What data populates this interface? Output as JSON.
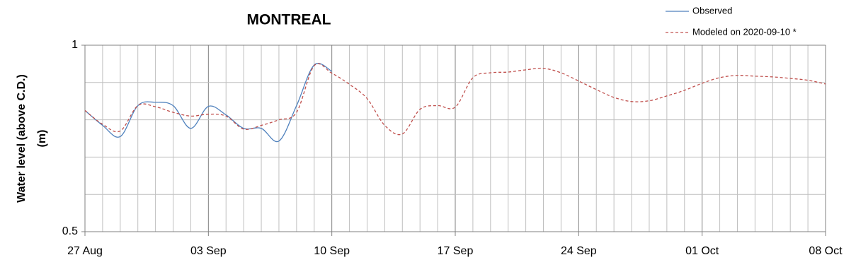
{
  "chart_data": {
    "type": "line",
    "title": "MONTREAL",
    "y_label": [
      "Water level (above C.D.)",
      "(m)"
    ],
    "categories": [
      "27 Aug",
      null,
      null,
      null,
      null,
      null,
      null,
      "03 Sep",
      null,
      null,
      null,
      null,
      null,
      null,
      "10 Sep",
      null,
      null,
      null,
      null,
      null,
      null,
      "17 Sep",
      null,
      null,
      null,
      null,
      null,
      null,
      "24 Sep",
      null,
      null,
      null,
      null,
      null,
      null,
      "01 Oct",
      null,
      null,
      null,
      null,
      null,
      null,
      "08 Oct"
    ],
    "ylim": [
      0.5,
      1
    ],
    "yticks": [
      0.5,
      1
    ],
    "y_minor_grid": [
      0.6,
      0.7,
      0.8,
      0.9
    ],
    "grid": true,
    "legend": "top-right",
    "series": [
      {
        "name": "Observed",
        "color": "#4f81bd",
        "dash": false,
        "values": [
          0.825,
          0.785,
          0.755,
          0.838,
          0.847,
          0.838,
          0.777,
          0.836,
          0.813,
          0.777,
          0.777,
          0.743,
          0.838,
          0.947,
          0.93,
          null,
          null,
          null,
          null,
          null,
          null,
          null,
          null,
          null,
          null,
          null,
          null,
          null,
          null,
          null,
          null,
          null,
          null,
          null,
          null,
          null,
          null,
          null,
          null,
          null,
          null,
          null,
          null
        ]
      },
      {
        "name": "Modeled on 2020-09-10 *",
        "color": "#c0504d",
        "dash": true,
        "values": [
          0.825,
          0.788,
          0.77,
          0.838,
          0.835,
          0.82,
          0.81,
          0.815,
          0.81,
          0.775,
          0.785,
          0.8,
          0.82,
          0.945,
          0.925,
          0.895,
          0.857,
          0.785,
          0.762,
          0.828,
          0.838,
          0.834,
          0.913,
          0.926,
          0.928,
          0.934,
          0.938,
          0.926,
          0.904,
          0.881,
          0.86,
          0.849,
          0.851,
          0.864,
          0.879,
          0.898,
          0.913,
          0.919,
          0.917,
          0.915,
          0.911,
          0.906,
          0.896
        ]
      }
    ]
  }
}
